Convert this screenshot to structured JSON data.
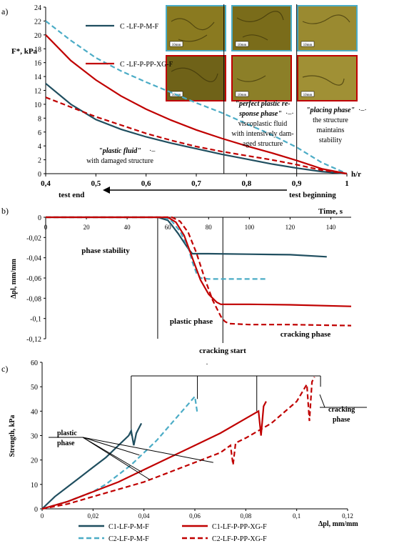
{
  "chart_data": [
    {
      "panel": "a)",
      "type": "line",
      "ylabel": "F*, kPa",
      "xlabel": "h/r",
      "xlim": [
        0.4,
        1
      ],
      "ylim": [
        0,
        24
      ],
      "xticks": [
        "0,4",
        "0,5",
        "0,6",
        "0,7",
        "0,8",
        "0,9",
        "1"
      ],
      "yticks": [
        "0",
        "2",
        "4",
        "6",
        "8",
        "10",
        "12",
        "14",
        "16",
        "18",
        "20",
        "22",
        "24"
      ],
      "legend": [
        "C -LF-P-M-F",
        "C -LF-P-PP-XG-F"
      ],
      "series": [
        {
          "name": "C -LF-P-M-F",
          "style": "solid",
          "color": "#1f4e5f",
          "x": [
            0.4,
            0.45,
            0.5,
            0.55,
            0.6,
            0.65,
            0.7,
            0.75,
            0.8,
            0.85,
            0.9,
            0.95,
            1.0
          ],
          "y": [
            13,
            10,
            7.8,
            6.4,
            5.3,
            4.4,
            3.6,
            2.8,
            2.1,
            1.4,
            0.8,
            0.3,
            0
          ]
        },
        {
          "name": "",
          "style": "dashed",
          "color": "#4bacc6",
          "x": [
            0.4,
            0.45,
            0.5,
            0.55,
            0.6,
            0.65,
            0.7,
            0.75,
            0.8,
            0.85,
            0.9,
            0.95,
            1.0
          ],
          "y": [
            22,
            19.2,
            16.7,
            14.8,
            13.2,
            11.7,
            10.2,
            8.8,
            7.2,
            5.6,
            3.8,
            1.6,
            0
          ]
        },
        {
          "name": "C -LF-P-PP-XG-F",
          "style": "solid",
          "color": "#c00000",
          "x": [
            0.4,
            0.45,
            0.5,
            0.55,
            0.6,
            0.65,
            0.7,
            0.75,
            0.8,
            0.85,
            0.9,
            0.95,
            1.0
          ],
          "y": [
            20,
            16.3,
            13.5,
            11.2,
            9.3,
            7.7,
            6.3,
            5.1,
            4.0,
            3.0,
            1.9,
            0.7,
            0
          ]
        },
        {
          "name": "",
          "style": "dashed",
          "color": "#c00000",
          "x": [
            0.4,
            0.45,
            0.5,
            0.55,
            0.6,
            0.65,
            0.7,
            0.75,
            0.8,
            0.85,
            0.9,
            0.95,
            1.0
          ],
          "y": [
            11,
            9.6,
            8.2,
            7.0,
            5.8,
            4.8,
            3.9,
            3.2,
            2.6,
            2.0,
            1.3,
            0.5,
            0
          ]
        }
      ],
      "vlines_x": [
        0.755,
        0.9
      ],
      "annotations": {
        "plastic_fluid_title": "\"plastic fluid\"",
        "plastic_fluid_dash": "·–",
        "plastic_fluid_text": "with damaged structure",
        "perfect_line1": "\"perfect plastic re-",
        "perfect_line2": "sponse phase\"",
        "perfect_line2_tail": "·–·",
        "perfect_line3": "viscoplastic fluid",
        "perfect_line4": "with intensively dam-",
        "perfect_line5": "aged structure",
        "placing_line1": "\"placing phase\"",
        "placing_line1_tail": "·–·",
        "placing_line2": "the structure",
        "placing_line3": "maintains",
        "placing_line4": "stability",
        "test_end": "test end",
        "test_beginning": "test beginning"
      },
      "photo_scale_label": "10mm"
    },
    {
      "panel": "b)",
      "type": "line",
      "xlabel": "Time, s",
      "ylabel": "Δpl, mm/mm",
      "xlim": [
        0,
        150
      ],
      "ylim": [
        -0.12,
        0
      ],
      "xticks": [
        "0",
        "20",
        "40",
        "60",
        "80",
        "100",
        "120",
        "140"
      ],
      "yticks": [
        "0",
        "-0,02",
        "-0,04",
        "-0,06",
        "-0,08",
        "-0,1",
        "-0,12"
      ],
      "series": [
        {
          "style": "solid",
          "color": "#1f4e5f",
          "x": [
            0,
            55,
            60,
            62,
            65,
            68,
            70,
            72,
            80,
            100,
            120,
            138
          ],
          "y": [
            0,
            0,
            -0.003,
            -0.008,
            -0.016,
            -0.025,
            -0.031,
            -0.036,
            -0.036,
            -0.0365,
            -0.037,
            -0.039
          ]
        },
        {
          "style": "dashed",
          "color": "#4bacc6",
          "x": [
            0,
            58,
            62,
            66,
            70,
            72,
            74,
            76,
            80,
            90,
            100,
            108
          ],
          "y": [
            0,
            0,
            -0.004,
            -0.014,
            -0.03,
            -0.044,
            -0.055,
            -0.06,
            -0.061,
            -0.061,
            -0.061,
            -0.061
          ]
        },
        {
          "style": "solid",
          "color": "#c00000",
          "x": [
            0,
            60,
            64,
            68,
            72,
            76,
            80,
            84,
            86,
            100,
            120,
            150
          ],
          "y": [
            0,
            0,
            -0.005,
            -0.018,
            -0.04,
            -0.062,
            -0.076,
            -0.084,
            -0.086,
            -0.086,
            -0.0865,
            -0.088
          ]
        },
        {
          "style": "dashed",
          "color": "#c00000",
          "x": [
            0,
            62,
            66,
            70,
            74,
            78,
            82,
            86,
            88,
            90,
            100,
            120,
            150
          ],
          "y": [
            0,
            0,
            -0.004,
            -0.015,
            -0.035,
            -0.06,
            -0.082,
            -0.098,
            -0.103,
            -0.105,
            -0.106,
            -0.106,
            -0.107
          ]
        }
      ],
      "vlines_x": [
        55,
        87
      ],
      "annotations": {
        "phase_stability": "phase stability",
        "plastic_phase": "plastic phase",
        "cracking_phase": "cracking phase",
        "cracking_start": "cracking start",
        "dot": "."
      }
    },
    {
      "panel": "c)",
      "type": "line",
      "xlabel": "Δpl, mm/mm",
      "ylabel": "Strength, kPa",
      "xlim": [
        0,
        0.12
      ],
      "ylim": [
        0,
        60
      ],
      "xticks": [
        "0",
        "0,02",
        "0,04",
        "0,06",
        "0,08",
        "0,1",
        "0,12"
      ],
      "yticks": [
        "0",
        "10",
        "20",
        "30",
        "40",
        "50",
        "60"
      ],
      "legend": [
        "C1-LF-P-M-F",
        "C2-LF-P-M-F",
        "C1-LF-P-PP-XG-F",
        "C2-LF-P-PP-XG-F"
      ],
      "series": [
        {
          "name": "C1-LF-P-M-F",
          "style": "solid",
          "color": "#1f4e5f",
          "x": [
            0,
            0.005,
            0.01,
            0.015,
            0.02,
            0.025,
            0.03,
            0.034,
            0.035,
            0.036,
            0.037,
            0.038,
            0.039
          ],
          "y": [
            0,
            5,
            9,
            13,
            17,
            21,
            26,
            30,
            32,
            26,
            31,
            33,
            35
          ]
        },
        {
          "name": "C2-LF-P-M-F",
          "style": "dashed",
          "color": "#4bacc6",
          "x": [
            0,
            0.01,
            0.02,
            0.025,
            0.03,
            0.035,
            0.04,
            0.045,
            0.05,
            0.055,
            0.06,
            0.061
          ],
          "y": [
            0,
            3,
            7,
            10,
            14,
            18,
            23,
            28,
            34,
            40,
            46,
            39
          ]
        },
        {
          "name": "C1-LF-P-PP-XG-F",
          "style": "solid",
          "color": "#c00000",
          "x": [
            0,
            0.01,
            0.02,
            0.03,
            0.04,
            0.05,
            0.06,
            0.07,
            0.08,
            0.085,
            0.086,
            0.087,
            0.088
          ],
          "y": [
            0,
            3,
            7,
            11,
            16,
            21,
            26,
            31,
            37,
            40,
            30,
            42,
            44
          ]
        },
        {
          "name": "C2-LF-P-PP-XG-F",
          "style": "dashed",
          "color": "#c00000",
          "x": [
            0,
            0.01,
            0.02,
            0.03,
            0.04,
            0.05,
            0.06,
            0.07,
            0.074,
            0.075,
            0.076,
            0.08,
            0.09,
            0.1,
            0.104,
            0.105,
            0.106,
            0.107
          ],
          "y": [
            0,
            2,
            5,
            8,
            11,
            15,
            19,
            23,
            26,
            18,
            27,
            29,
            35,
            44,
            51,
            36,
            52,
            54
          ]
        }
      ],
      "annotations": {
        "plastic_line1": "plastic",
        "plastic_line2": "phase",
        "cracking_line1": "cracking",
        "cracking_line2": "phase"
      }
    }
  ]
}
